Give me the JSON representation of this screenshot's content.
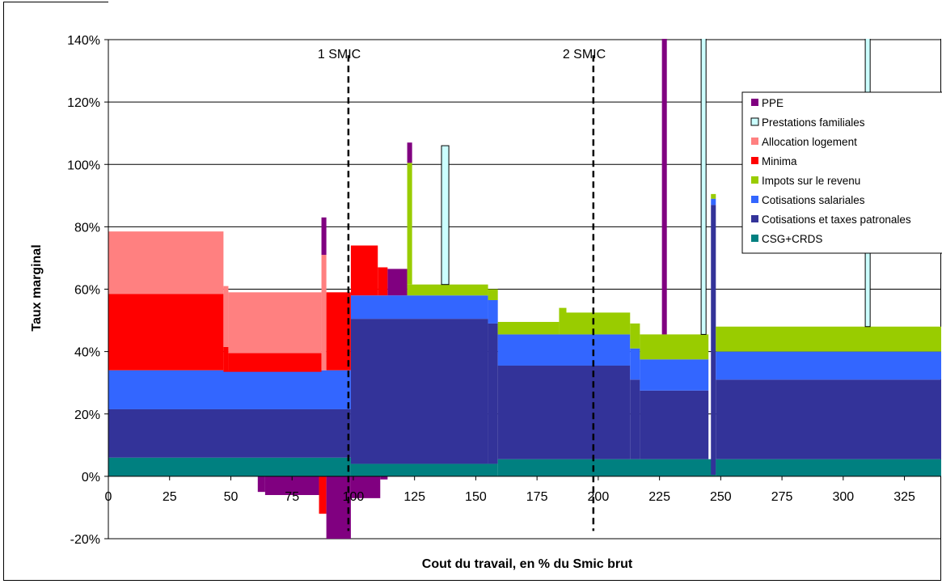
{
  "chart_data": {
    "type": "bar",
    "xlabel": "Cout du travail, en % du Smic brut",
    "ylabel": "Taux marginal",
    "xlim": [
      0,
      340
    ],
    "ylim": [
      -20,
      140
    ],
    "x_ticks": [
      "0",
      "25",
      "50",
      "75",
      "100",
      "125",
      "150",
      "175",
      "200",
      "225",
      "250",
      "275",
      "300",
      "325"
    ],
    "y_ticks": [
      "-20%",
      "0%",
      "20%",
      "40%",
      "60%",
      "80%",
      "100%",
      "120%",
      "140%"
    ],
    "reference_lines": [
      {
        "x": 98,
        "label": "1 SMIC"
      },
      {
        "x": 198,
        "label": "2 SMIC"
      }
    ],
    "legend": {
      "position": "top-right"
    },
    "series": [
      {
        "name": "PPE",
        "color": "#800080"
      },
      {
        "name": "Prestations familiales",
        "color": "#ccffff"
      },
      {
        "name": "Allocation logement",
        "color": "#ff8080"
      },
      {
        "name": "Minima",
        "color": "#ff0000"
      },
      {
        "name": "Impots sur le revenu",
        "color": "#99cc00"
      },
      {
        "name": "Cotisations salariales",
        "color": "#3366ff"
      },
      {
        "name": "Cotisations et taxes patronales",
        "color": "#333399"
      },
      {
        "name": "CSG+CRDS",
        "color": "#008080"
      }
    ],
    "segments": [
      {
        "series": "CSG+CRDS",
        "x0": 0,
        "x1": 99,
        "y0": 0,
        "y1": 6
      },
      {
        "series": "Cotisations et taxes patronales",
        "x0": 0,
        "x1": 99,
        "y0": 6,
        "y1": 21.5
      },
      {
        "series": "Cotisations salariales",
        "x0": 0,
        "x1": 99,
        "y0": 21.5,
        "y1": 34
      },
      {
        "series": "Minima",
        "x0": 0,
        "x1": 47,
        "y0": 34,
        "y1": 58.5
      },
      {
        "series": "Allocation logement",
        "x0": 0,
        "x1": 47,
        "y0": 58.5,
        "y1": 78.5
      },
      {
        "series": "Minima",
        "x0": 47,
        "x1": 49,
        "y0": 33.5,
        "y1": 41.5
      },
      {
        "series": "Allocation logement",
        "x0": 47,
        "x1": 49,
        "y0": 41.5,
        "y1": 61
      },
      {
        "series": "Minima",
        "x0": 49,
        "x1": 87,
        "y0": 33.5,
        "y1": 39.5
      },
      {
        "series": "Allocation logement",
        "x0": 49,
        "x1": 87,
        "y0": 39.5,
        "y1": 59
      },
      {
        "series": "Allocation logement",
        "x0": 87,
        "x1": 89,
        "y0": 34,
        "y1": 71
      },
      {
        "series": "PPE",
        "x0": 87,
        "x1": 89,
        "y0": 71,
        "y1": 83
      },
      {
        "series": "Minima",
        "x0": 89,
        "x1": 99,
        "y0": 34,
        "y1": 59
      },
      {
        "series": "PPE",
        "x0": 61,
        "x1": 64,
        "y0": -5,
        "y1": 0
      },
      {
        "series": "PPE",
        "x0": 64,
        "x1": 86,
        "y0": -6,
        "y1": 0
      },
      {
        "series": "Minima",
        "x0": 86,
        "x1": 89,
        "y0": -12,
        "y1": 0
      },
      {
        "series": "PPE",
        "x0": 89,
        "x1": 99,
        "y0": -20,
        "y1": 0
      },
      {
        "series": "PPE",
        "x0": 99,
        "x1": 111,
        "y0": -7,
        "y1": 0
      },
      {
        "series": "PPE",
        "x0": 111,
        "x1": 114,
        "y0": -1,
        "y1": 0
      },
      {
        "series": "CSG+CRDS",
        "x0": 99,
        "x1": 159,
        "y0": 0,
        "y1": 4
      },
      {
        "series": "Cotisations et taxes patronales",
        "x0": 99,
        "x1": 155,
        "y0": 4,
        "y1": 50.5
      },
      {
        "series": "Cotisations et taxes patronales",
        "x0": 155,
        "x1": 159,
        "y0": 4,
        "y1": 49
      },
      {
        "series": "Cotisations salariales",
        "x0": 99,
        "x1": 155,
        "y0": 50.5,
        "y1": 58
      },
      {
        "series": "Cotisations salariales",
        "x0": 155,
        "x1": 159,
        "y0": 49,
        "y1": 56.5
      },
      {
        "series": "Minima",
        "x0": 99,
        "x1": 110,
        "y0": 58,
        "y1": 74
      },
      {
        "series": "Minima",
        "x0": 110,
        "x1": 114,
        "y0": 58,
        "y1": 67
      },
      {
        "series": "PPE",
        "x0": 114,
        "x1": 122,
        "y0": 58,
        "y1": 66.5
      },
      {
        "series": "Impots sur le revenu",
        "x0": 122,
        "x1": 155,
        "y0": 58,
        "y1": 61.5
      },
      {
        "series": "Impots sur le revenu",
        "x0": 155,
        "x1": 159,
        "y0": 56.5,
        "y1": 60
      },
      {
        "series": "Impots sur le revenu",
        "x0": 122,
        "x1": 124,
        "y0": 61.5,
        "y1": 100.5
      },
      {
        "series": "PPE",
        "x0": 122,
        "x1": 124,
        "y0": 100.5,
        "y1": 107
      },
      {
        "series": "Prestations familiales",
        "x0": 136,
        "x1": 139,
        "y0": 61.5,
        "y1": 106
      },
      {
        "series": "CSG+CRDS",
        "x0": 159,
        "x1": 248,
        "y0": 0,
        "y1": 5.5
      },
      {
        "series": "Cotisations et taxes patronales",
        "x0": 159,
        "x1": 213,
        "y0": 5.5,
        "y1": 35.5
      },
      {
        "series": "Cotisations et taxes patronales",
        "x0": 213,
        "x1": 217,
        "y0": 5.5,
        "y1": 31
      },
      {
        "series": "Cotisations et taxes patronales",
        "x0": 217,
        "x1": 245,
        "y0": 5.5,
        "y1": 27.5
      },
      {
        "series": "Cotisations salariales",
        "x0": 159,
        "x1": 213,
        "y0": 35.5,
        "y1": 45.5
      },
      {
        "series": "Cotisations salariales",
        "x0": 213,
        "x1": 217,
        "y0": 31,
        "y1": 41
      },
      {
        "series": "Cotisations salariales",
        "x0": 217,
        "x1": 245,
        "y0": 27.5,
        "y1": 37.5
      },
      {
        "series": "Impots sur le revenu",
        "x0": 159,
        "x1": 184,
        "y0": 45.5,
        "y1": 49.5
      },
      {
        "series": "Impots sur le revenu",
        "x0": 184,
        "x1": 187,
        "y0": 45.5,
        "y1": 54
      },
      {
        "series": "Impots sur le revenu",
        "x0": 187,
        "x1": 213,
        "y0": 45.5,
        "y1": 52.5
      },
      {
        "series": "Impots sur le revenu",
        "x0": 213,
        "x1": 217,
        "y0": 41,
        "y1": 49
      },
      {
        "series": "Impots sur le revenu",
        "x0": 217,
        "x1": 245,
        "y0": 37.5,
        "y1": 45.5
      },
      {
        "series": "PPE",
        "x0": 226,
        "x1": 228,
        "y0": 45.5,
        "y1": 142
      },
      {
        "series": "Prestations familiales",
        "x0": 242,
        "x1": 244,
        "y0": 45.5,
        "y1": 142
      },
      {
        "series": "Cotisations et taxes patronales",
        "x0": 246,
        "x1": 248,
        "y0": 0.5,
        "y1": 87
      },
      {
        "series": "Cotisations salariales",
        "x0": 246,
        "x1": 248,
        "y0": 87,
        "y1": 89
      },
      {
        "series": "Impots sur le revenu",
        "x0": 246,
        "x1": 248,
        "y0": 89,
        "y1": 90.5
      },
      {
        "series": "CSG+CRDS",
        "x0": 248,
        "x1": 340,
        "y0": 0,
        "y1": 5.5
      },
      {
        "series": "Cotisations et taxes patronales",
        "x0": 248,
        "x1": 340,
        "y0": 5.5,
        "y1": 31
      },
      {
        "series": "Cotisations salariales",
        "x0": 248,
        "x1": 340,
        "y0": 31,
        "y1": 40
      },
      {
        "series": "Impots sur le revenu",
        "x0": 248,
        "x1": 340,
        "y0": 40,
        "y1": 48
      },
      {
        "series": "Prestations familiales",
        "x0": 309,
        "x1": 311,
        "y0": 48,
        "y1": 142
      }
    ]
  }
}
